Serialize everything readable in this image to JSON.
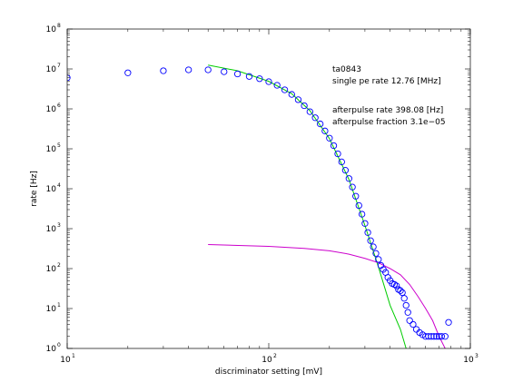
{
  "chart_data": {
    "type": "scatter",
    "xscale": "log",
    "yscale": "log",
    "xlim": [
      10,
      1000
    ],
    "ylim": [
      1,
      100000000
    ],
    "xlabel": "discriminator setting [mV]",
    "ylabel": "rate [Hz]",
    "x_ticks": [
      {
        "value": 10,
        "base": "10",
        "exp": "1"
      },
      {
        "value": 100,
        "base": "10",
        "exp": "2"
      },
      {
        "value": 1000,
        "base": "10",
        "exp": "3"
      }
    ],
    "y_ticks": [
      {
        "value": 1,
        "base": "10",
        "exp": "0"
      },
      {
        "value": 10,
        "base": "10",
        "exp": "1"
      },
      {
        "value": 100,
        "base": "10",
        "exp": "2"
      },
      {
        "value": 1000,
        "base": "10",
        "exp": "3"
      },
      {
        "value": 10000,
        "base": "10",
        "exp": "4"
      },
      {
        "value": 100000,
        "base": "10",
        "exp": "5"
      },
      {
        "value": 1000000,
        "base": "10",
        "exp": "6"
      },
      {
        "value": 10000000,
        "base": "10",
        "exp": "7"
      },
      {
        "value": 100000000,
        "base": "10",
        "exp": "8"
      }
    ],
    "annotations": {
      "channel": "ta0843",
      "single_pe_rate": "single pe rate 12.76 [MHz]",
      "afterpulse_rate": "afterpulse rate 398.08 [Hz]",
      "afterpulse_fraction": "afterpulse fraction 3.1e−05"
    },
    "colors": {
      "points": "#0000ff",
      "single_pe_fit": "#00cc00",
      "afterpulse_fit": "#cc00cc",
      "axes": "#000000"
    },
    "series": [
      {
        "kind": "markers",
        "marker": "circle-open",
        "color": "#0000ff",
        "points": [
          [
            10,
            6000000
          ],
          [
            20,
            8000000
          ],
          [
            30,
            9000000
          ],
          [
            40,
            9500000
          ],
          [
            50,
            9500000
          ],
          [
            60,
            8500000
          ],
          [
            70,
            7500000
          ],
          [
            80,
            6500000
          ],
          [
            90,
            5700000
          ],
          [
            100,
            4800000
          ],
          [
            110,
            3900000
          ],
          [
            120,
            3000000
          ],
          [
            130,
            2300000
          ],
          [
            140,
            1700000
          ],
          [
            150,
            1200000
          ],
          [
            160,
            850000
          ],
          [
            170,
            600000
          ],
          [
            180,
            420000
          ],
          [
            190,
            280000
          ],
          [
            200,
            185000
          ],
          [
            210,
            120000
          ],
          [
            220,
            75000
          ],
          [
            230,
            47000
          ],
          [
            240,
            29000
          ],
          [
            250,
            18000
          ],
          [
            260,
            11000
          ],
          [
            270,
            6500
          ],
          [
            280,
            3800
          ],
          [
            290,
            2300
          ],
          [
            300,
            1350
          ],
          [
            310,
            800
          ],
          [
            320,
            500
          ],
          [
            330,
            350
          ],
          [
            340,
            240
          ],
          [
            350,
            170
          ],
          [
            360,
            120
          ],
          [
            370,
            95
          ],
          [
            380,
            80
          ],
          [
            390,
            60
          ],
          [
            400,
            50
          ],
          [
            410,
            42
          ],
          [
            420,
            40
          ],
          [
            430,
            37
          ],
          [
            440,
            30
          ],
          [
            450,
            28
          ],
          [
            460,
            25
          ],
          [
            470,
            18
          ],
          [
            480,
            12
          ],
          [
            490,
            8
          ],
          [
            500,
            5
          ],
          [
            520,
            4
          ],
          [
            540,
            3
          ],
          [
            560,
            2.5
          ],
          [
            580,
            2.2
          ],
          [
            600,
            2
          ],
          [
            620,
            2
          ],
          [
            640,
            2
          ],
          [
            660,
            2
          ],
          [
            680,
            2
          ],
          [
            700,
            2
          ],
          [
            720,
            2
          ],
          [
            750,
            2
          ],
          [
            780,
            4.5
          ]
        ]
      },
      {
        "kind": "line",
        "color": "#00cc00",
        "points": [
          [
            50,
            12500000
          ],
          [
            70,
            9000000
          ],
          [
            100,
            4900000
          ],
          [
            130,
            2400000
          ],
          [
            160,
            900000
          ],
          [
            200,
            180000
          ],
          [
            250,
            17000
          ],
          [
            300,
            1200
          ],
          [
            350,
            110
          ],
          [
            400,
            12
          ],
          [
            450,
            3
          ],
          [
            480,
            1
          ]
        ]
      },
      {
        "kind": "line",
        "color": "#cc00cc",
        "points": [
          [
            50,
            400
          ],
          [
            100,
            360
          ],
          [
            150,
            320
          ],
          [
            200,
            280
          ],
          [
            250,
            230
          ],
          [
            300,
            180
          ],
          [
            350,
            140
          ],
          [
            400,
            100
          ],
          [
            450,
            70
          ],
          [
            500,
            40
          ],
          [
            550,
            20
          ],
          [
            600,
            10
          ],
          [
            650,
            5
          ],
          [
            700,
            2
          ],
          [
            750,
            1
          ]
        ]
      }
    ]
  }
}
